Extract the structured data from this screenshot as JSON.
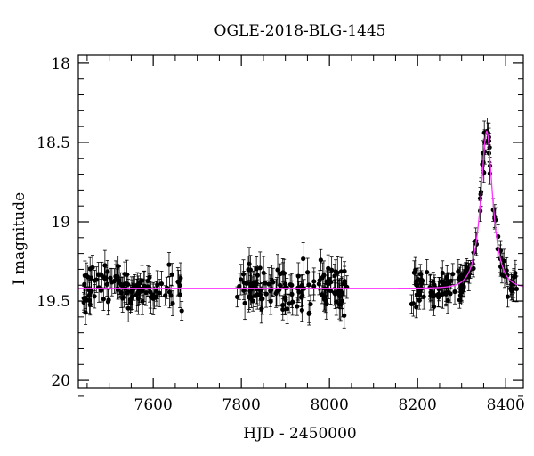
{
  "chart_data": {
    "type": "scatter",
    "title": "OGLE-2018-BLG-1445",
    "xlabel": "HJD - 2450000",
    "ylabel": "I magnitude",
    "xlim": [
      7430,
      8440
    ],
    "ylim": [
      20.05,
      17.95
    ],
    "y_inverted": true,
    "grid": false,
    "legend": "none",
    "x_ticks": [
      7600,
      7800,
      8000,
      8200,
      8400
    ],
    "x_minor_step": 50,
    "y_ticks": [
      18,
      18.5,
      19,
      19.5,
      20
    ],
    "y_minor_step": 0.1,
    "colors": {
      "points": "#000000",
      "model": "#ff33ff",
      "frame": "#000000"
    },
    "series": [
      {
        "kind": "data",
        "segments": [
          {
            "x_range": [
              7440,
              7665
            ],
            "count": 110,
            "baseline": 19.42,
            "err": 0.08,
            "scatter": 0.07
          },
          {
            "x_range": [
              7790,
              8040
            ],
            "count": 130,
            "baseline": 19.42,
            "err": 0.08,
            "scatter": 0.07
          },
          {
            "x_range": [
              8185,
              8425
            ],
            "count": 140,
            "baseline": 19.42,
            "err": 0.07,
            "scatter": 0.05
          }
        ]
      },
      {
        "kind": "model",
        "peak_x": 8357,
        "peak_y": 18.43,
        "baseline": 19.42,
        "tE": 25
      }
    ]
  }
}
